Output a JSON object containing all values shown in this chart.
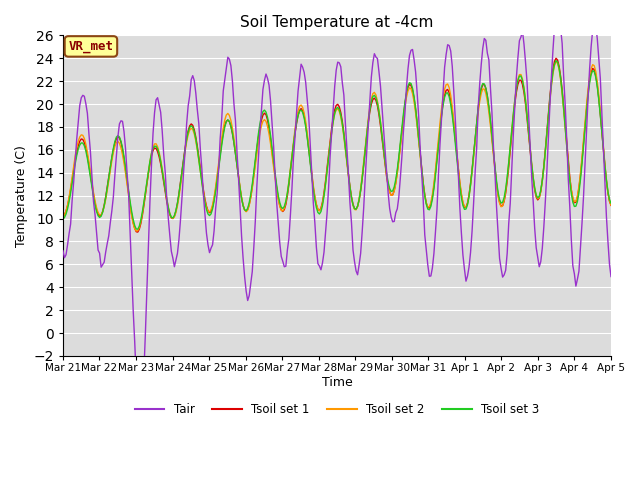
{
  "title": "Soil Temperature at -4cm",
  "xlabel": "Time",
  "ylabel": "Temperature (C)",
  "ylim": [
    -2,
    26
  ],
  "yticks": [
    -2,
    0,
    2,
    4,
    6,
    8,
    10,
    12,
    14,
    16,
    18,
    20,
    22,
    24,
    26
  ],
  "x_labels": [
    "Mar 21",
    "Mar 22",
    "Mar 23",
    "Mar 24",
    "Mar 25",
    "Mar 26",
    "Mar 27",
    "Mar 28",
    "Mar 29",
    "Mar 30",
    "Mar 31",
    "Apr 1",
    "Apr 2",
    "Apr 3",
    "Apr 4",
    "Apr 5"
  ],
  "colors": {
    "Tair": "#9932CC",
    "Tsoil_set1": "#DD0000",
    "Tsoil_set2": "#FF9900",
    "Tsoil_set3": "#22CC22"
  },
  "bg_color": "#DCDCDC",
  "grid_color": "#FFFFFF",
  "annotation": {
    "text": "VR_met",
    "facecolor": "#FFFF99",
    "edgecolor": "#8B4513",
    "textcolor": "#8B0000",
    "fontsize": 9
  },
  "legend_labels": [
    "Tair",
    "Tsoil set 1",
    "Tsoil set 2",
    "Tsoil set 3"
  ],
  "legend_colors": [
    "#9932CC",
    "#DD0000",
    "#FF9900",
    "#22CC22"
  ],
  "figsize": [
    6.4,
    4.8
  ],
  "dpi": 100
}
